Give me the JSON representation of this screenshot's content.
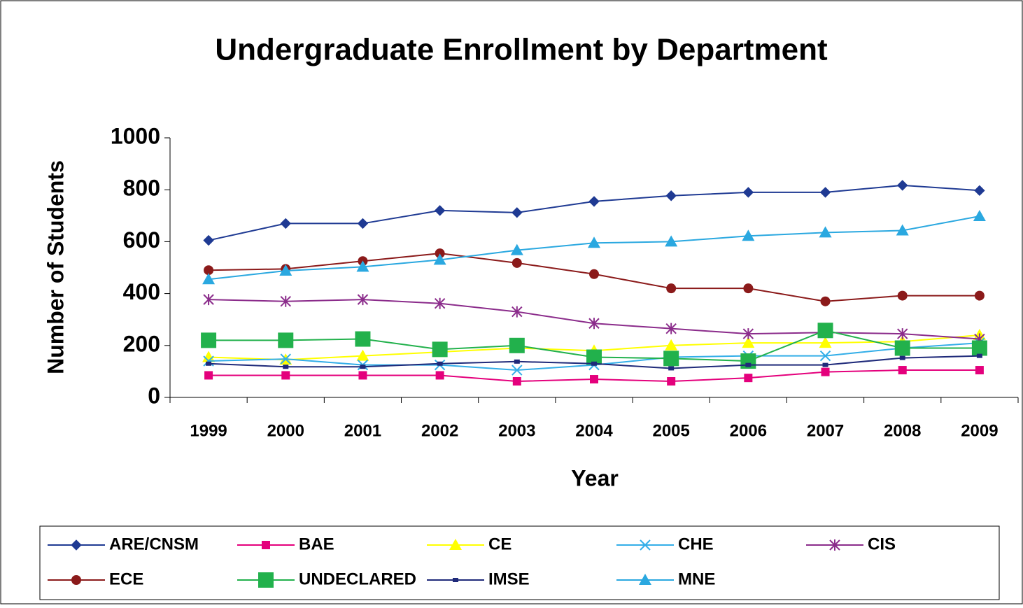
{
  "chart_data": {
    "type": "line",
    "title": "Undergraduate Enrollment by Department",
    "x_label": "Year",
    "y_label": "Number of Students",
    "categories": [
      "1999",
      "2000",
      "2001",
      "2002",
      "2003",
      "2004",
      "2005",
      "2006",
      "2007",
      "2008",
      "2009"
    ],
    "ylim": [
      0,
      1000
    ],
    "yticks": [
      0,
      200,
      400,
      600,
      800,
      1000
    ],
    "grid": false,
    "legend": "bottom",
    "series": [
      {
        "name": "ARE/CNSM",
        "color": "#1f3a93",
        "marker": "diamond",
        "values": [
          605,
          670,
          670,
          720,
          712,
          755,
          777,
          790,
          790,
          817,
          797
        ]
      },
      {
        "name": "BAE",
        "color": "#e4007c",
        "marker": "square",
        "values": [
          85,
          85,
          85,
          85,
          62,
          70,
          62,
          75,
          98,
          105,
          105
        ]
      },
      {
        "name": "CE",
        "color": "#ffff00",
        "marker": "triangle",
        "values": [
          155,
          145,
          160,
          175,
          190,
          180,
          200,
          210,
          210,
          215,
          240
        ]
      },
      {
        "name": "CHE",
        "color": "#33aee8",
        "marker": "x",
        "values": [
          140,
          148,
          125,
          125,
          105,
          125,
          155,
          160,
          160,
          190,
          210
        ]
      },
      {
        "name": "CIS",
        "color": "#8b2c8b",
        "marker": "star",
        "values": [
          377,
          370,
          377,
          362,
          330,
          285,
          265,
          245,
          250,
          245,
          225
        ]
      },
      {
        "name": "ECE",
        "color": "#8b1a1a",
        "marker": "circle",
        "values": [
          490,
          495,
          525,
          555,
          518,
          475,
          420,
          420,
          370,
          392,
          392
        ]
      },
      {
        "name": "UNDECLARED",
        "color": "#22b14c",
        "marker": "bigsquare",
        "values": [
          220,
          220,
          225,
          185,
          200,
          155,
          150,
          140,
          258,
          190,
          190
        ]
      },
      {
        "name": "IMSE",
        "color": "#1f2a7a",
        "marker": "smallsquare",
        "values": [
          130,
          118,
          118,
          130,
          138,
          130,
          112,
          125,
          125,
          152,
          160
        ]
      },
      {
        "name": "MNE",
        "color": "#2aa8e0",
        "marker": "triangle",
        "values": [
          455,
          488,
          503,
          530,
          567,
          595,
          600,
          622,
          635,
          643,
          698
        ]
      }
    ]
  }
}
